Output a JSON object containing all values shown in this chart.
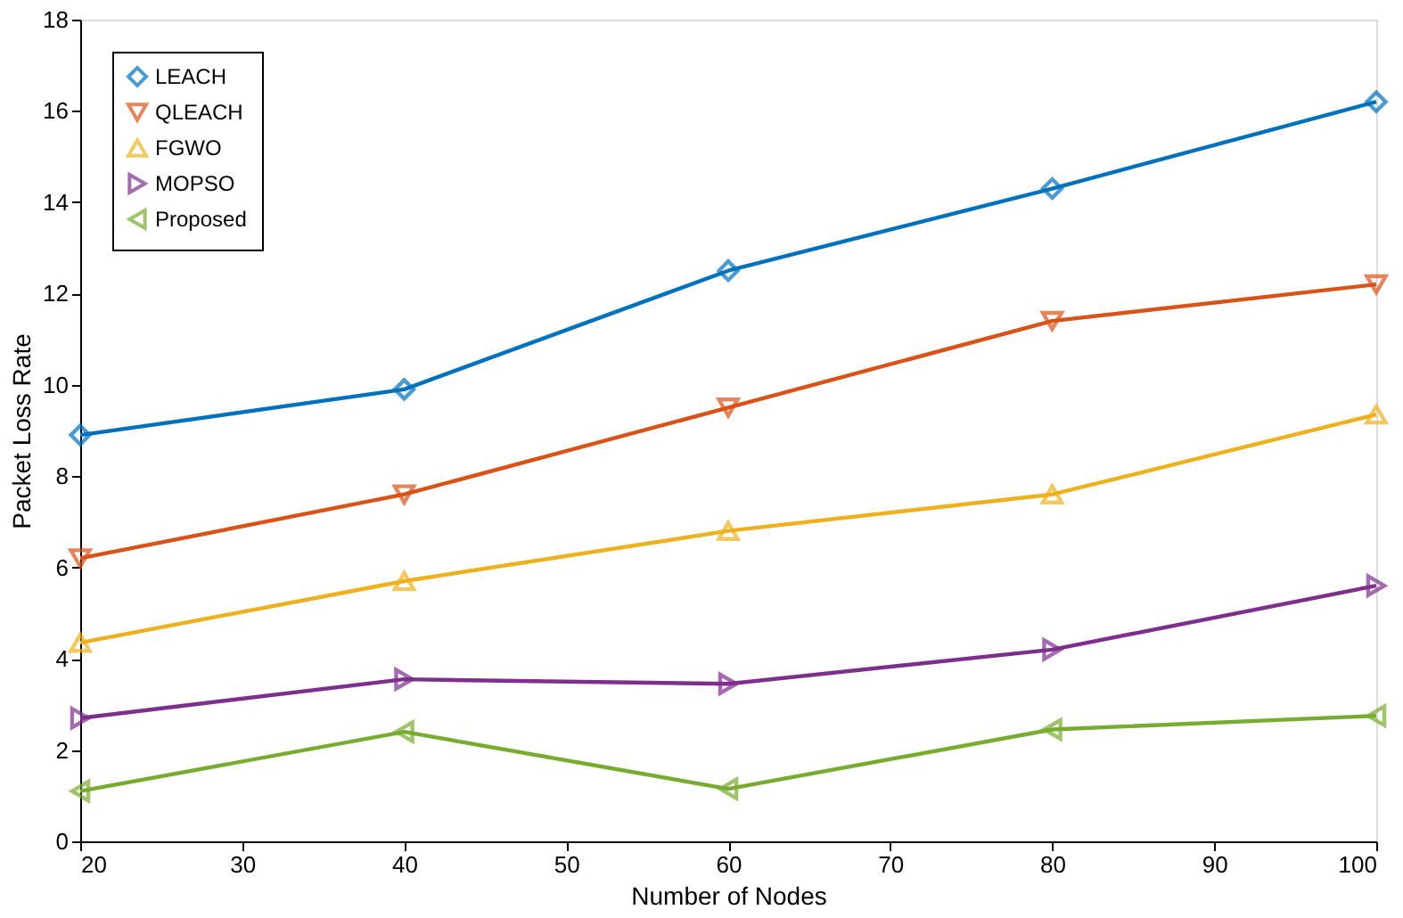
{
  "chart_data": {
    "type": "line",
    "xlabel": "Number of Nodes",
    "ylabel": "Packet Loss Rate",
    "x": [
      20,
      40,
      60,
      80,
      100
    ],
    "xlim": [
      20,
      100
    ],
    "xticks": [
      20,
      30,
      40,
      50,
      60,
      70,
      80,
      90,
      100
    ],
    "ylim": [
      0,
      18
    ],
    "yticks": [
      0,
      2,
      4,
      6,
      8,
      10,
      12,
      14,
      16,
      18
    ],
    "grid": false,
    "legend": "top left",
    "line_style": "solid",
    "series": [
      {
        "name": "LEACH",
        "color": "#0072bd",
        "marker": "diamond",
        "values": [
          8.9,
          9.9,
          12.5,
          14.3,
          16.2
        ]
      },
      {
        "name": "QLEACH",
        "color": "#d95319",
        "marker": "triangle-down",
        "values": [
          6.2,
          7.6,
          9.5,
          11.4,
          12.2
        ]
      },
      {
        "name": "FGWO",
        "color": "#edb120",
        "marker": "triangle-up",
        "values": [
          4.35,
          5.7,
          6.8,
          7.6,
          9.35
        ]
      },
      {
        "name": "MOPSO",
        "color": "#7e2f8e",
        "marker": "triangle-right",
        "values": [
          2.7,
          3.55,
          3.45,
          4.2,
          5.6
        ]
      },
      {
        "name": "Proposed",
        "color": "#77ac30",
        "marker": "triangle-left",
        "values": [
          1.1,
          2.4,
          1.15,
          2.45,
          2.75
        ]
      }
    ]
  }
}
